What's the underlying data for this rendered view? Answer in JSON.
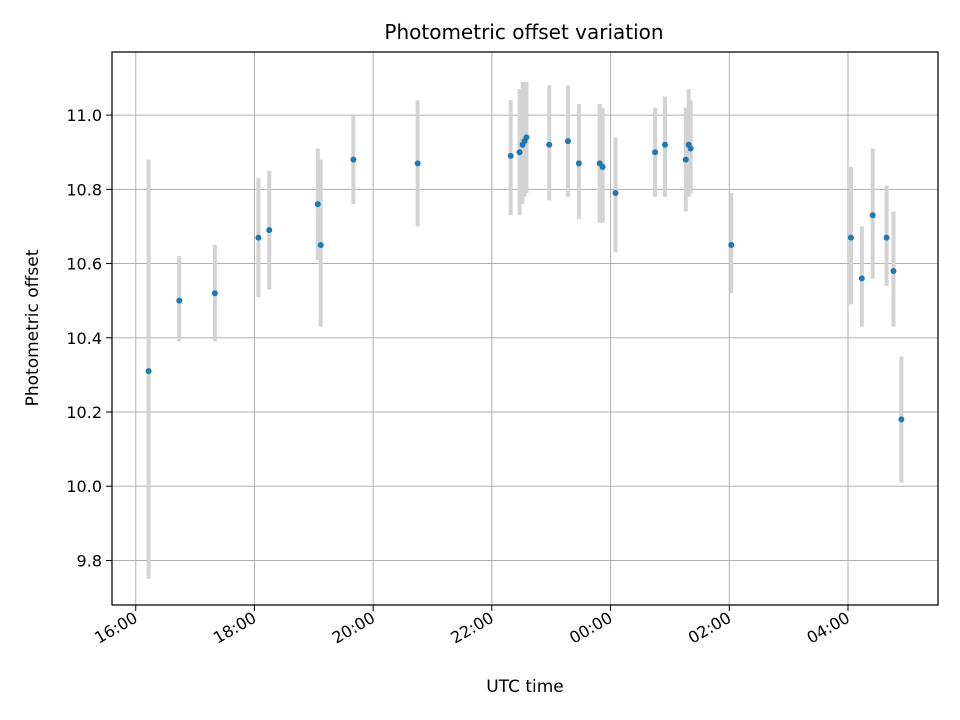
{
  "chart_data": {
    "type": "scatter",
    "title": "Photometric offset variation",
    "xlabel": "UTC time",
    "ylabel": "Photometric offset",
    "x_ticks": [
      "16:00",
      "18:00",
      "20:00",
      "22:00",
      "00:00",
      "02:00",
      "04:00"
    ],
    "y_ticks": [
      "9.8",
      "10.0",
      "10.2",
      "10.4",
      "10.6",
      "10.8",
      "11.0"
    ],
    "xlim": [
      "15:36",
      "05:31"
    ],
    "ylim": [
      9.68,
      11.17
    ],
    "grid": true,
    "marker_color": "#1f77b4",
    "errorbar_color": "#d3d3d3",
    "series": [
      {
        "points": [
          {
            "x": "16:13",
            "y": 10.31,
            "lo": 9.75,
            "hi": 10.88
          },
          {
            "x": "16:44",
            "y": 10.5,
            "lo": 10.39,
            "hi": 10.62
          },
          {
            "x": "17:20",
            "y": 10.52,
            "lo": 10.39,
            "hi": 10.65
          },
          {
            "x": "18:04",
            "y": 10.67,
            "lo": 10.51,
            "hi": 10.83
          },
          {
            "x": "18:15",
            "y": 10.69,
            "lo": 10.53,
            "hi": 10.85
          },
          {
            "x": "19:04",
            "y": 10.76,
            "lo": 10.61,
            "hi": 10.91
          },
          {
            "x": "19:07",
            "y": 10.65,
            "lo": 10.43,
            "hi": 10.88
          },
          {
            "x": "19:40",
            "y": 10.88,
            "lo": 10.76,
            "hi": 11.0
          },
          {
            "x": "20:45",
            "y": 10.87,
            "lo": 10.7,
            "hi": 11.04
          },
          {
            "x": "22:19",
            "y": 10.89,
            "lo": 10.73,
            "hi": 11.04
          },
          {
            "x": "22:28",
            "y": 10.9,
            "lo": 10.73,
            "hi": 11.07
          },
          {
            "x": "22:31",
            "y": 10.92,
            "lo": 10.76,
            "hi": 11.09
          },
          {
            "x": "22:33",
            "y": 10.93,
            "lo": 10.78,
            "hi": 11.09
          },
          {
            "x": "22:35",
            "y": 10.94,
            "lo": 10.79,
            "hi": 11.09
          },
          {
            "x": "22:58",
            "y": 10.92,
            "lo": 10.77,
            "hi": 11.08
          },
          {
            "x": "23:17",
            "y": 10.93,
            "lo": 10.78,
            "hi": 11.08
          },
          {
            "x": "23:28",
            "y": 10.87,
            "lo": 10.72,
            "hi": 11.03
          },
          {
            "x": "23:49",
            "y": 10.87,
            "lo": 10.71,
            "hi": 11.03
          },
          {
            "x": "23:52",
            "y": 10.86,
            "lo": 10.71,
            "hi": 11.02
          },
          {
            "x": "00:05",
            "y": 10.79,
            "lo": 10.63,
            "hi": 10.94
          },
          {
            "x": "00:45",
            "y": 10.9,
            "lo": 10.78,
            "hi": 11.02
          },
          {
            "x": "00:55",
            "y": 10.92,
            "lo": 10.78,
            "hi": 11.05
          },
          {
            "x": "01:16",
            "y": 10.88,
            "lo": 10.74,
            "hi": 11.02
          },
          {
            "x": "01:19",
            "y": 10.92,
            "lo": 10.78,
            "hi": 11.07
          },
          {
            "x": "01:21",
            "y": 10.91,
            "lo": 10.79,
            "hi": 11.04
          },
          {
            "x": "02:02",
            "y": 10.65,
            "lo": 10.52,
            "hi": 10.79
          },
          {
            "x": "04:03",
            "y": 10.67,
            "lo": 10.49,
            "hi": 10.86
          },
          {
            "x": "04:14",
            "y": 10.56,
            "lo": 10.43,
            "hi": 10.7
          },
          {
            "x": "04:25",
            "y": 10.73,
            "lo": 10.56,
            "hi": 10.91
          },
          {
            "x": "04:39",
            "y": 10.67,
            "lo": 10.54,
            "hi": 10.81
          },
          {
            "x": "04:46",
            "y": 10.58,
            "lo": 10.43,
            "hi": 10.74
          },
          {
            "x": "04:54",
            "y": 10.18,
            "lo": 10.01,
            "hi": 10.35
          }
        ]
      }
    ]
  }
}
